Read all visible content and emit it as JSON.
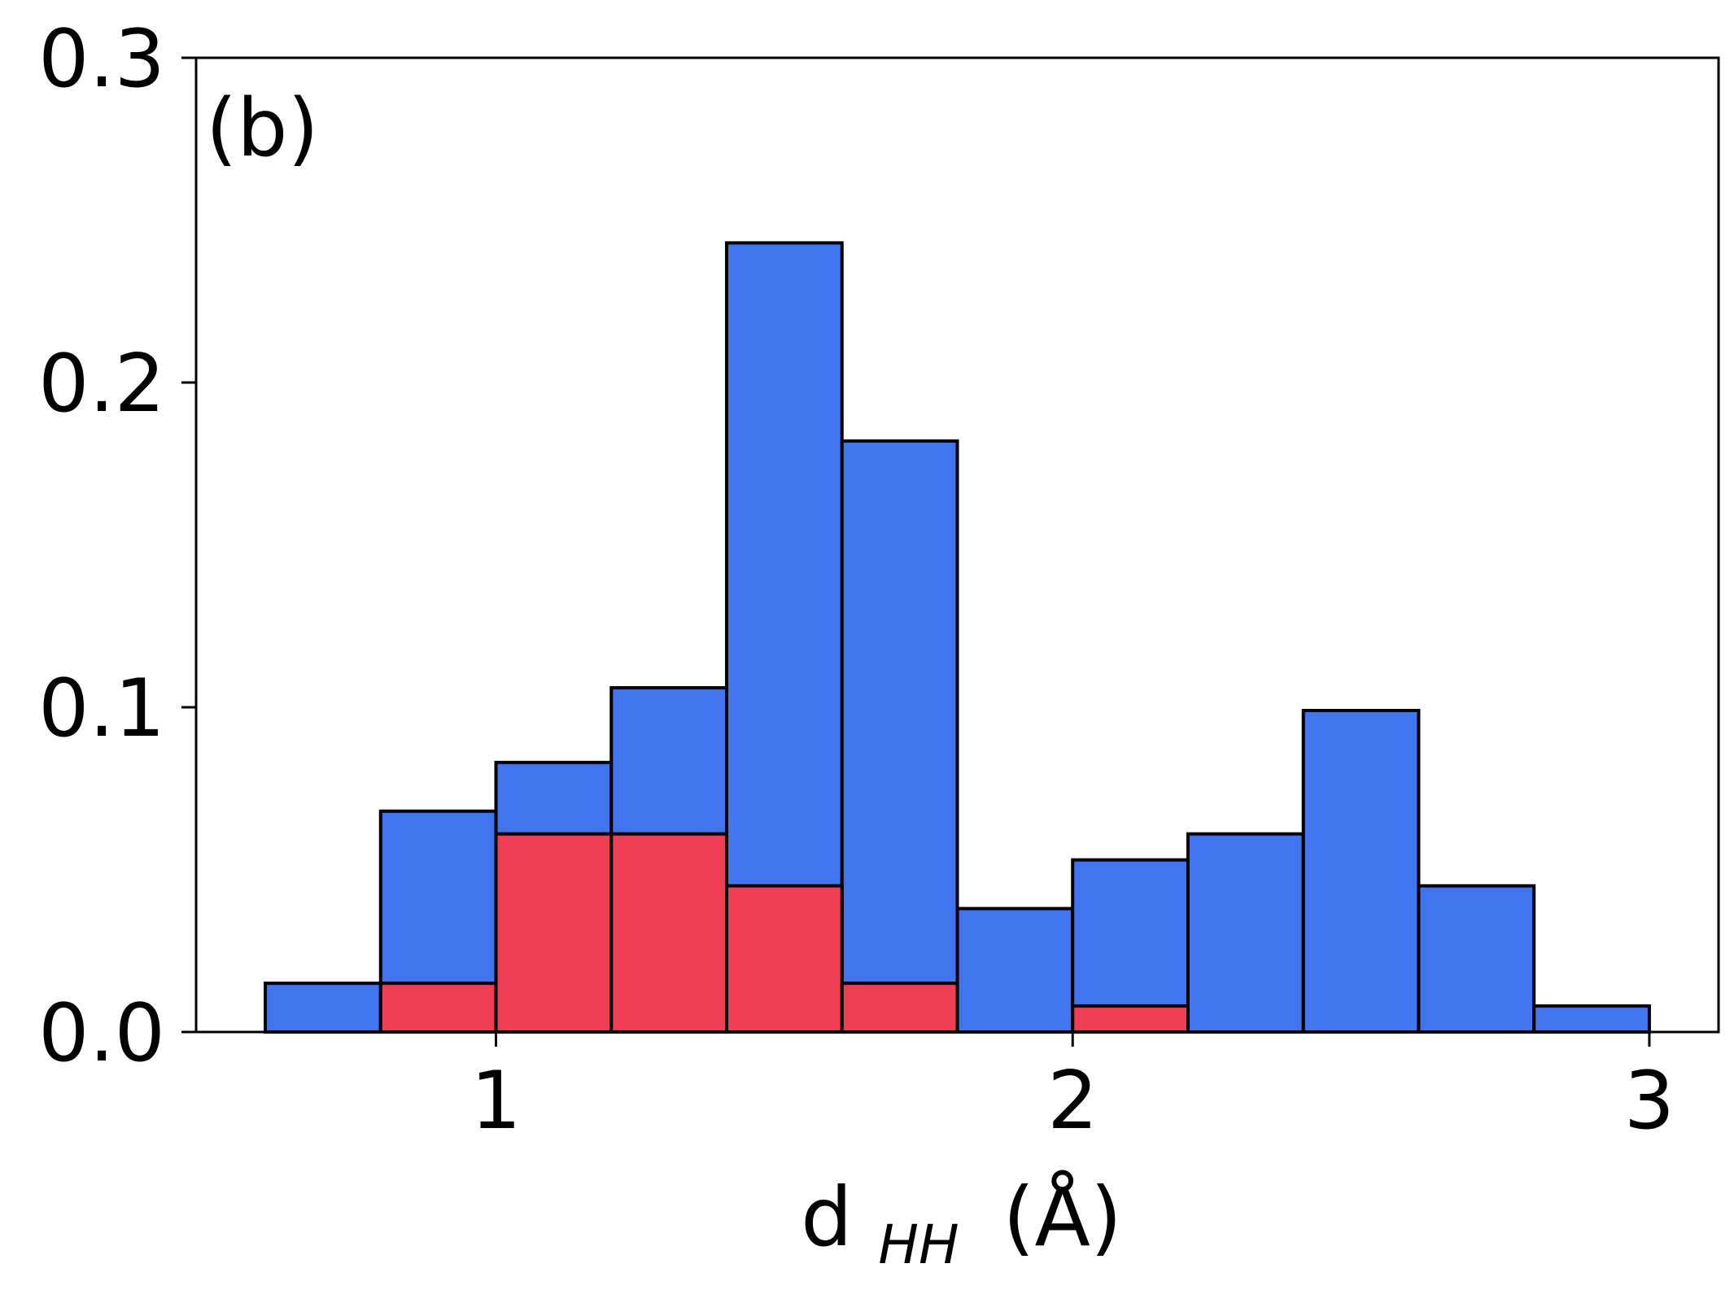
{
  "chart_data": {
    "type": "bar",
    "subtype": "overlaid-histogram",
    "panel_label": "(b)",
    "xlabel": {
      "main": "d",
      "subscript": "HH",
      "unit": "(Å)"
    },
    "ylabel": "",
    "xlim": [
      0.48,
      3.12
    ],
    "ylim": [
      0,
      0.3
    ],
    "xticks": [
      1,
      2,
      3
    ],
    "xtick_labels": [
      "1",
      "2",
      "3"
    ],
    "yticks": [
      0.0,
      0.1,
      0.2,
      0.3
    ],
    "ytick_labels": [
      "0.0",
      "0.1",
      "0.2",
      "0.3"
    ],
    "bin_edges": [
      0.6,
      0.8,
      1.0,
      1.2,
      1.4,
      1.6,
      1.8,
      2.0,
      2.2,
      2.4,
      2.6,
      2.8,
      3.0
    ],
    "grid": false,
    "legend": "none",
    "series": [
      {
        "color": "#4175ef",
        "values": [
          0.015,
          0.068,
          0.083,
          0.106,
          0.243,
          0.182,
          0.038,
          0.053,
          0.061,
          0.099,
          0.045,
          0.008
        ]
      },
      {
        "color": "#ef3e55",
        "values": [
          0,
          0.015,
          0.061,
          0.061,
          0.045,
          0.015,
          0,
          0.008,
          0,
          0,
          0,
          0
        ]
      }
    ]
  }
}
